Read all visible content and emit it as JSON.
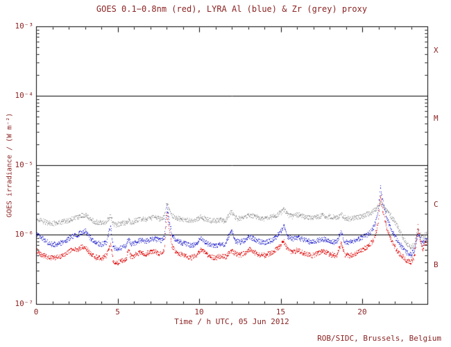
{
  "title": "GOES 0.1−0.8nm (red), LYRA Al (blue) & Zr (grey) proxy",
  "credit": "ROB/SIDC, Brussels, Belgium",
  "colors": {
    "text": "#8b2323",
    "axis": "#000000",
    "goes_red": "#dd0000",
    "lyra_al_blue": "#2222cc",
    "lyra_zr_grey": "#999999"
  },
  "x_axis": {
    "label": "Time / h UTC, 05 Jun 2012",
    "min": 0,
    "max": 24,
    "minor_step": 1,
    "major_ticks": [
      {
        "value": 0,
        "label": "0"
      },
      {
        "value": 5,
        "label": "5"
      },
      {
        "value": 10,
        "label": "10"
      },
      {
        "value": 15,
        "label": "15"
      },
      {
        "value": 20,
        "label": "20"
      }
    ]
  },
  "y_axis": {
    "label": "GOES irradiance / (W m⁻²)",
    "scale": "log",
    "ticks": [
      {
        "value": 0.001,
        "label": "10⁻³"
      },
      {
        "value": 0.0001,
        "label": "10⁻⁴"
      },
      {
        "value": 1e-05,
        "label": "10⁻⁵"
      },
      {
        "value": 1e-06,
        "label": "10⁻⁶"
      },
      {
        "value": 1e-07,
        "label": "10⁻⁷"
      }
    ]
  },
  "hlines": [
    0.0001,
    1e-05,
    1e-06
  ],
  "flare_classes": [
    {
      "label": "X",
      "position_exp": -3.35
    },
    {
      "label": "M",
      "position_exp": -4.33
    },
    {
      "label": "C",
      "position_exp": -5.57
    },
    {
      "label": "B",
      "position_exp": -6.44
    }
  ],
  "chart_data": {
    "type": "scatter",
    "title": "GOES 0.1−0.8nm (red), LYRA Al (blue) & Zr (grey) proxy",
    "xlabel": "Time / h UTC, 05 Jun 2012",
    "ylabel": "GOES irradiance / (W m⁻²)",
    "xlim": [
      0,
      24
    ],
    "ylim": [
      1e-07,
      0.001
    ],
    "yscale": "log",
    "grid": false,
    "legend": "named in title by colour",
    "series": [
      {
        "name": "LYRA Zr proxy",
        "color": "#999999",
        "points": [
          [
            0,
            1.7e-06
          ],
          [
            0.3,
            1.6e-06
          ],
          [
            0.7,
            1.5e-06
          ],
          [
            1,
            1.45e-06
          ],
          [
            1.3,
            1.5e-06
          ],
          [
            1.6,
            1.55e-06
          ],
          [
            1.9,
            1.6e-06
          ],
          [
            2.2,
            1.7e-06
          ],
          [
            2.5,
            1.8e-06
          ],
          [
            2.8,
            1.9e-06
          ],
          [
            3,
            1.95e-06
          ],
          [
            3.3,
            1.7e-06
          ],
          [
            3.6,
            1.55e-06
          ],
          [
            4,
            1.5e-06
          ],
          [
            4.3,
            1.55e-06
          ],
          [
            4.55,
            1.9e-06
          ],
          [
            4.7,
            1.45e-06
          ],
          [
            4.9,
            1.4e-06
          ],
          [
            5.2,
            1.45e-06
          ],
          [
            5.5,
            1.5e-06
          ],
          [
            5.65,
            1.65e-06
          ],
          [
            5.8,
            1.5e-06
          ],
          [
            6.1,
            1.6e-06
          ],
          [
            6.4,
            1.7e-06
          ],
          [
            6.7,
            1.65e-06
          ],
          [
            7,
            1.75e-06
          ],
          [
            7.3,
            1.8e-06
          ],
          [
            7.6,
            1.7e-06
          ],
          [
            7.85,
            1.8e-06
          ],
          [
            8,
            3e-06
          ],
          [
            8.15,
            2.3e-06
          ],
          [
            8.3,
            1.9e-06
          ],
          [
            8.6,
            1.75e-06
          ],
          [
            8.9,
            1.7e-06
          ],
          [
            9.2,
            1.65e-06
          ],
          [
            9.5,
            1.6e-06
          ],
          [
            9.8,
            1.65e-06
          ],
          [
            10.1,
            1.8e-06
          ],
          [
            10.35,
            1.7e-06
          ],
          [
            10.7,
            1.6e-06
          ],
          [
            11,
            1.6e-06
          ],
          [
            11.3,
            1.65e-06
          ],
          [
            11.6,
            1.6e-06
          ],
          [
            11.95,
            2.2e-06
          ],
          [
            12.2,
            1.75e-06
          ],
          [
            12.5,
            1.7e-06
          ],
          [
            12.8,
            1.8e-06
          ],
          [
            13.1,
            1.9e-06
          ],
          [
            13.4,
            1.85e-06
          ],
          [
            13.7,
            1.75e-06
          ],
          [
            14,
            1.7e-06
          ],
          [
            14.3,
            1.8e-06
          ],
          [
            14.6,
            1.9e-06
          ],
          [
            14.85,
            2e-06
          ],
          [
            15.2,
            2.3e-06
          ],
          [
            15.4,
            1.95e-06
          ],
          [
            15.7,
            1.85e-06
          ],
          [
            16,
            1.95e-06
          ],
          [
            16.3,
            1.85e-06
          ],
          [
            16.6,
            1.8e-06
          ],
          [
            16.9,
            1.75e-06
          ],
          [
            17.2,
            1.8e-06
          ],
          [
            17.5,
            1.9e-06
          ],
          [
            17.8,
            1.85e-06
          ],
          [
            18.1,
            1.8e-06
          ],
          [
            18.4,
            1.75e-06
          ],
          [
            18.7,
            2e-06
          ],
          [
            18.9,
            1.75e-06
          ],
          [
            19.2,
            1.7e-06
          ],
          [
            19.5,
            1.75e-06
          ],
          [
            19.8,
            1.8e-06
          ],
          [
            20.1,
            1.9e-06
          ],
          [
            20.4,
            2e-06
          ],
          [
            20.7,
            2.2e-06
          ],
          [
            20.95,
            2.5e-06
          ],
          [
            21.1,
            3e-06
          ],
          [
            21.25,
            2.6e-06
          ],
          [
            21.5,
            2.2e-06
          ],
          [
            21.8,
            1.8e-06
          ],
          [
            22.1,
            1.4e-06
          ],
          [
            22.4,
            1e-06
          ],
          [
            22.7,
            7.5e-07
          ],
          [
            23,
            6.5e-07
          ],
          [
            23.2,
            7.5e-07
          ],
          [
            23.4,
            1.2e-06
          ],
          [
            23.55,
            1e-06
          ],
          [
            23.7,
            9e-07
          ],
          [
            23.85,
            1e-06
          ],
          [
            24,
            1.1e-06
          ]
        ]
      },
      {
        "name": "LYRA Al proxy",
        "color": "#2222cc",
        "points": [
          [
            0,
            1.05e-06
          ],
          [
            0.3,
            9e-07
          ],
          [
            0.7,
            7.8e-07
          ],
          [
            1,
            7.2e-07
          ],
          [
            1.3,
            7.5e-07
          ],
          [
            1.6,
            7.8e-07
          ],
          [
            1.9,
            8.5e-07
          ],
          [
            2.2,
            9.5e-07
          ],
          [
            2.5,
            1e-06
          ],
          [
            2.8,
            1.1e-06
          ],
          [
            3,
            1.15e-06
          ],
          [
            3.3,
            9e-07
          ],
          [
            3.6,
            7.8e-07
          ],
          [
            4,
            7.2e-07
          ],
          [
            4.3,
            7.8e-07
          ],
          [
            4.55,
            1.3e-06
          ],
          [
            4.7,
            6.8e-07
          ],
          [
            4.9,
            6.2e-07
          ],
          [
            5.2,
            6.5e-07
          ],
          [
            5.5,
            7e-07
          ],
          [
            5.65,
            9e-07
          ],
          [
            5.8,
            7.2e-07
          ],
          [
            6.1,
            7.8e-07
          ],
          [
            6.4,
            8.5e-07
          ],
          [
            6.7,
            8e-07
          ],
          [
            7,
            8.5e-07
          ],
          [
            7.3,
            8.8e-07
          ],
          [
            7.6,
            8.2e-07
          ],
          [
            7.85,
            9e-07
          ],
          [
            8,
            2.6e-06
          ],
          [
            8.15,
            1.6e-06
          ],
          [
            8.3,
            1e-06
          ],
          [
            8.6,
            8.2e-07
          ],
          [
            8.9,
            7.8e-07
          ],
          [
            9.2,
            7.4e-07
          ],
          [
            9.5,
            7e-07
          ],
          [
            9.8,
            7.4e-07
          ],
          [
            10.1,
            9e-07
          ],
          [
            10.35,
            7.8e-07
          ],
          [
            10.7,
            7.2e-07
          ],
          [
            11,
            7e-07
          ],
          [
            11.3,
            7.4e-07
          ],
          [
            11.6,
            7.2e-07
          ],
          [
            11.95,
            1.2e-06
          ],
          [
            12.2,
            8.2e-07
          ],
          [
            12.5,
            7.8e-07
          ],
          [
            12.8,
            8.4e-07
          ],
          [
            13.1,
            9.4e-07
          ],
          [
            13.4,
            8.6e-07
          ],
          [
            13.7,
            8e-07
          ],
          [
            14,
            7.8e-07
          ],
          [
            14.3,
            8.2e-07
          ],
          [
            14.6,
            8.8e-07
          ],
          [
            14.85,
            1e-06
          ],
          [
            15.2,
            1.35e-06
          ],
          [
            15.4,
            9.5e-07
          ],
          [
            15.7,
            8.6e-07
          ],
          [
            16,
            9.2e-07
          ],
          [
            16.3,
            8.6e-07
          ],
          [
            16.6,
            8.2e-07
          ],
          [
            16.9,
            7.8e-07
          ],
          [
            17.2,
            8.2e-07
          ],
          [
            17.5,
            8.8e-07
          ],
          [
            17.8,
            8.5e-07
          ],
          [
            18.1,
            8e-07
          ],
          [
            18.4,
            7.8e-07
          ],
          [
            18.7,
            1.1e-06
          ],
          [
            18.9,
            8e-07
          ],
          [
            19.2,
            7.8e-07
          ],
          [
            19.5,
            8.2e-07
          ],
          [
            19.8,
            8.8e-07
          ],
          [
            20.1,
            9.5e-07
          ],
          [
            20.4,
            1.05e-06
          ],
          [
            20.7,
            1.3e-06
          ],
          [
            20.95,
            2e-06
          ],
          [
            21.1,
            5e-06
          ],
          [
            21.25,
            3e-06
          ],
          [
            21.5,
            1.7e-06
          ],
          [
            21.8,
            1.15e-06
          ],
          [
            22.1,
            8.5e-07
          ],
          [
            22.4,
            6.8e-07
          ],
          [
            22.7,
            5.6e-07
          ],
          [
            23,
            5.2e-07
          ],
          [
            23.2,
            6.2e-07
          ],
          [
            23.4,
            1.05e-06
          ],
          [
            23.55,
            8.5e-07
          ],
          [
            23.7,
            7.5e-07
          ],
          [
            23.85,
            8.5e-07
          ],
          [
            24,
            9.5e-07
          ]
        ]
      },
      {
        "name": "GOES 0.1−0.8nm",
        "color": "#dd0000",
        "points": [
          [
            0,
            6e-07
          ],
          [
            0.3,
            5.2e-07
          ],
          [
            0.7,
            4.8e-07
          ],
          [
            1,
            4.6e-07
          ],
          [
            1.3,
            4.8e-07
          ],
          [
            1.6,
            5e-07
          ],
          [
            1.9,
            5.5e-07
          ],
          [
            2.2,
            6.2e-07
          ],
          [
            2.5,
            6e-07
          ],
          [
            2.8,
            6.8e-07
          ],
          [
            3,
            6.5e-07
          ],
          [
            3.3,
            5.5e-07
          ],
          [
            3.6,
            4.8e-07
          ],
          [
            4,
            4.6e-07
          ],
          [
            4.3,
            5e-07
          ],
          [
            4.55,
            7.5e-07
          ],
          [
            4.7,
            4.2e-07
          ],
          [
            4.9,
            3.9e-07
          ],
          [
            5.2,
            4.2e-07
          ],
          [
            5.5,
            4.5e-07
          ],
          [
            5.65,
            6.2e-07
          ],
          [
            5.8,
            4.8e-07
          ],
          [
            6.1,
            5.2e-07
          ],
          [
            6.4,
            5.6e-07
          ],
          [
            6.7,
            5.3e-07
          ],
          [
            7,
            5.6e-07
          ],
          [
            7.3,
            5.8e-07
          ],
          [
            7.6,
            5.4e-07
          ],
          [
            7.85,
            6e-07
          ],
          [
            8,
            2.1e-06
          ],
          [
            8.15,
            1.2e-06
          ],
          [
            8.3,
            7e-07
          ],
          [
            8.6,
            5.6e-07
          ],
          [
            8.9,
            5.2e-07
          ],
          [
            9.2,
            4.9e-07
          ],
          [
            9.5,
            4.7e-07
          ],
          [
            9.8,
            5e-07
          ],
          [
            10.1,
            6.2e-07
          ],
          [
            10.35,
            5.4e-07
          ],
          [
            10.7,
            4.8e-07
          ],
          [
            11,
            4.7e-07
          ],
          [
            11.3,
            4.9e-07
          ],
          [
            11.6,
            4.8e-07
          ],
          [
            11.95,
            6e-07
          ],
          [
            12.2,
            5.3e-07
          ],
          [
            12.5,
            5.1e-07
          ],
          [
            12.8,
            5.6e-07
          ],
          [
            13.1,
            6.2e-07
          ],
          [
            13.4,
            5.6e-07
          ],
          [
            13.7,
            5.2e-07
          ],
          [
            14,
            5e-07
          ],
          [
            14.3,
            5.4e-07
          ],
          [
            14.6,
            5.8e-07
          ],
          [
            14.85,
            6.6e-07
          ],
          [
            15.2,
            8e-07
          ],
          [
            15.4,
            6.2e-07
          ],
          [
            15.7,
            5.6e-07
          ],
          [
            16,
            6e-07
          ],
          [
            16.3,
            5.6e-07
          ],
          [
            16.6,
            5.2e-07
          ],
          [
            16.9,
            5e-07
          ],
          [
            17.2,
            5.3e-07
          ],
          [
            17.5,
            5.8e-07
          ],
          [
            17.8,
            5.5e-07
          ],
          [
            18.1,
            5.2e-07
          ],
          [
            18.4,
            5e-07
          ],
          [
            18.7,
            7.5e-07
          ],
          [
            18.9,
            5.2e-07
          ],
          [
            19.2,
            5e-07
          ],
          [
            19.5,
            5.3e-07
          ],
          [
            19.8,
            5.8e-07
          ],
          [
            20.1,
            6.3e-07
          ],
          [
            20.4,
            7e-07
          ],
          [
            20.7,
            8.5e-07
          ],
          [
            20.95,
            1.4e-06
          ],
          [
            21.1,
            3.8e-06
          ],
          [
            21.25,
            2.2e-06
          ],
          [
            21.5,
            1.2e-06
          ],
          [
            21.8,
            8e-07
          ],
          [
            22.1,
            6e-07
          ],
          [
            22.4,
            5e-07
          ],
          [
            22.7,
            4.3e-07
          ],
          [
            23,
            4.1e-07
          ],
          [
            23.2,
            5e-07
          ],
          [
            23.4,
            1.3e-06
          ],
          [
            23.55,
            8e-07
          ],
          [
            23.7,
            6.2e-07
          ],
          [
            23.85,
            7.5e-07
          ],
          [
            24,
            8.5e-07
          ]
        ]
      }
    ]
  }
}
